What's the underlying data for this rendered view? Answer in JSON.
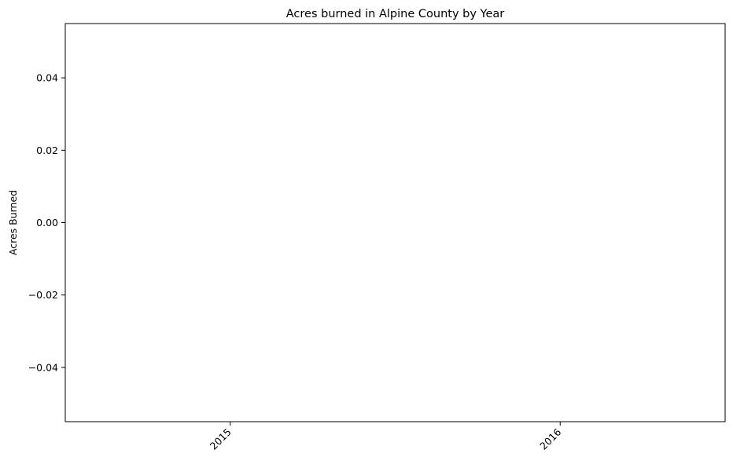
{
  "chart_data": {
    "type": "bar",
    "title": "Acres burned in Alpine County by Year",
    "xlabel": "",
    "ylabel": "Acres Burned",
    "categories": [
      "2015",
      "2016"
    ],
    "values": [
      0,
      0
    ],
    "xlim": [
      -0.5,
      1.5
    ],
    "ylim": [
      -0.055,
      0.055
    ],
    "yticks": [
      -0.04,
      -0.02,
      0.0,
      0.02,
      0.04
    ],
    "ytick_labels": [
      "−0.04",
      "−0.02",
      "0.00",
      "0.02",
      "0.04"
    ],
    "xtick_rotation_deg": 45,
    "grid": false,
    "legend": false,
    "colors": {
      "bar": "#1f77b4",
      "axes": "#000000",
      "background": "#ffffff"
    }
  }
}
